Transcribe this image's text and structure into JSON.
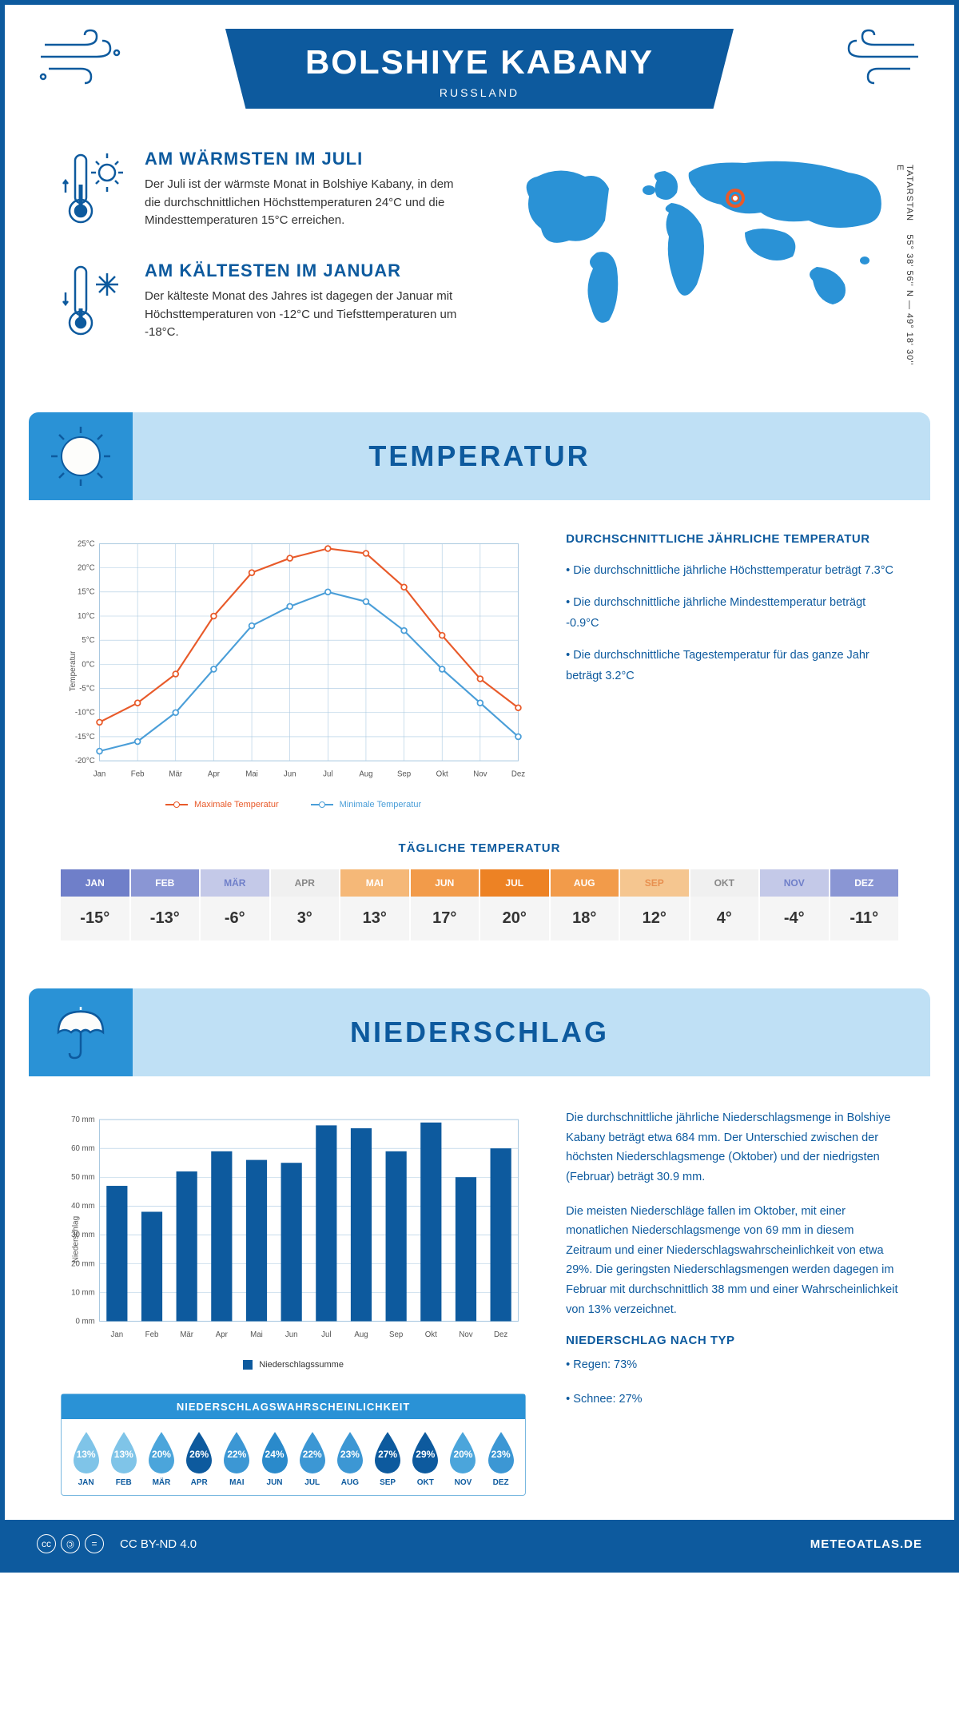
{
  "header": {
    "title": "BOLSHIYE KABANY",
    "subtitle": "RUSSLAND"
  },
  "facts": {
    "warm": {
      "title": "AM WÄRMSTEN IM JULI",
      "text": "Der Juli ist der wärmste Monat in Bolshiye Kabany, in dem die durchschnittlichen Höchsttemperaturen 24°C und die Mindesttemperaturen 15°C erreichen."
    },
    "cold": {
      "title": "AM KÄLTESTEN IM JANUAR",
      "text": "Der kälteste Monat des Jahres ist dagegen der Januar mit Höchsttemperaturen von -12°C und Tiefsttemperaturen um -18°C."
    }
  },
  "coords": "55° 38' 56'' N — 49° 18' 30'' E",
  "region": "TATARSTAN",
  "sections": {
    "temp": "TEMPERATUR",
    "precip": "NIEDERSCHLAG"
  },
  "temp_chart": {
    "type": "line",
    "months": [
      "Jan",
      "Feb",
      "Mär",
      "Apr",
      "Mai",
      "Jun",
      "Jul",
      "Aug",
      "Sep",
      "Okt",
      "Nov",
      "Dez"
    ],
    "max_values": [
      -12,
      -8,
      -2,
      10,
      19,
      22,
      24,
      23,
      16,
      6,
      -3,
      -9
    ],
    "min_values": [
      -18,
      -16,
      -10,
      -1,
      8,
      12,
      15,
      13,
      7,
      -1,
      -8,
      -15
    ],
    "max_color": "#e85a2a",
    "min_color": "#4a9ed8",
    "grid_color": "#a8c8e0",
    "ylim": [
      -20,
      25
    ],
    "ytick_step": 5,
    "ylabel": "Temperatur",
    "legend_max": "Maximale Temperatur",
    "legend_min": "Minimale Temperatur"
  },
  "temp_text": {
    "heading": "DURCHSCHNITTLICHE JÄHRLICHE TEMPERATUR",
    "p1": "• Die durchschnittliche jährliche Höchsttemperatur beträgt 7.3°C",
    "p2": "• Die durchschnittliche jährliche Mindesttemperatur beträgt -0.9°C",
    "p3": "• Die durchschnittliche Tagestemperatur für das ganze Jahr beträgt 3.2°C"
  },
  "daily_temp": {
    "heading": "TÄGLICHE TEMPERATUR",
    "months": [
      "JAN",
      "FEB",
      "MÄR",
      "APR",
      "MAI",
      "JUN",
      "JUL",
      "AUG",
      "SEP",
      "OKT",
      "NOV",
      "DEZ"
    ],
    "values": [
      "-15°",
      "-13°",
      "-6°",
      "3°",
      "13°",
      "17°",
      "20°",
      "18°",
      "12°",
      "4°",
      "-4°",
      "-11°"
    ],
    "head_colors": [
      "#6f7fc9",
      "#8a96d4",
      "#c4c9e8",
      "#f0f0f0",
      "#f5b878",
      "#f29b4a",
      "#ed8224",
      "#f29b4a",
      "#f5c690",
      "#f0f0f0",
      "#c4c9e8",
      "#8a96d4"
    ],
    "text_colors": [
      "#fff",
      "#fff",
      "#6f7fc9",
      "#888",
      "#fff",
      "#fff",
      "#fff",
      "#fff",
      "#e89050",
      "#888",
      "#6f7fc9",
      "#fff"
    ]
  },
  "precip_chart": {
    "type": "bar",
    "months": [
      "Jan",
      "Feb",
      "Mär",
      "Apr",
      "Mai",
      "Jun",
      "Jul",
      "Aug",
      "Sep",
      "Okt",
      "Nov",
      "Dez"
    ],
    "values": [
      47,
      38,
      52,
      59,
      56,
      55,
      68,
      67,
      59,
      69,
      50,
      60
    ],
    "bar_color": "#0d5a9e",
    "grid_color": "#a8c8e0",
    "ylim": [
      0,
      70
    ],
    "ytick_step": 10,
    "ylabel": "Niederschlag",
    "legend": "Niederschlagssumme"
  },
  "precip_text": {
    "p1": "Die durchschnittliche jährliche Niederschlagsmenge in Bolshiye Kabany beträgt etwa 684 mm. Der Unterschied zwischen der höchsten Niederschlagsmenge (Oktober) und der niedrigsten (Februar) beträgt 30.9 mm.",
    "p2": "Die meisten Niederschläge fallen im Oktober, mit einer monatlichen Niederschlagsmenge von 69 mm in diesem Zeitraum und einer Niederschlagswahrscheinlichkeit von etwa 29%. Die geringsten Niederschlagsmengen werden dagegen im Februar mit durchschnittlich 38 mm und einer Wahrscheinlichkeit von 13% verzeichnet.",
    "type_heading": "NIEDERSCHLAG NACH TYP",
    "type1": "• Regen: 73%",
    "type2": "• Schnee: 27%"
  },
  "prob": {
    "heading": "NIEDERSCHLAGSWAHRSCHEINLICHKEIT",
    "months": [
      "JAN",
      "FEB",
      "MÄR",
      "APR",
      "MAI",
      "JUN",
      "JUL",
      "AUG",
      "SEP",
      "OKT",
      "NOV",
      "DEZ"
    ],
    "values": [
      "13%",
      "13%",
      "20%",
      "26%",
      "22%",
      "24%",
      "22%",
      "23%",
      "27%",
      "29%",
      "20%",
      "23%"
    ],
    "colors": [
      "#7fc4e8",
      "#7fc4e8",
      "#4ba5db",
      "#0d5a9e",
      "#3c97d4",
      "#2a8acb",
      "#3c97d4",
      "#3c97d4",
      "#0d5a9e",
      "#0d5a9e",
      "#4ba5db",
      "#3c97d4"
    ]
  },
  "footer": {
    "license": "CC BY-ND 4.0",
    "site": "METEOATLAS.DE"
  },
  "colors": {
    "primary": "#0d5a9e",
    "light": "#bfe0f5",
    "accent": "#2a92d6"
  }
}
